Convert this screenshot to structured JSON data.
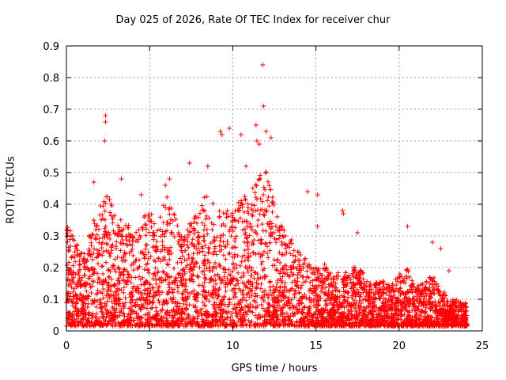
{
  "chart_data": {
    "type": "scatter",
    "title": "Day 025 of 2026, Rate Of TEC Index for receiver chur",
    "xlabel": "GPS time / hours",
    "ylabel": "ROTI / TECUs",
    "xlim": [
      0,
      25
    ],
    "ylim": [
      0,
      0.9
    ],
    "xticks": [
      "0",
      "5",
      "10",
      "15",
      "20",
      "25"
    ],
    "yticks": [
      "0",
      "0.1",
      "0.2",
      "0.3",
      "0.4",
      "0.5",
      "0.6",
      "0.7",
      "0.8",
      "0.9"
    ],
    "grid": true,
    "marker": "+",
    "color": "#ff0000",
    "outliers": [
      {
        "x": 11.8,
        "y": 0.84
      },
      {
        "x": 11.85,
        "y": 0.71
      },
      {
        "x": 2.35,
        "y": 0.68
      },
      {
        "x": 2.35,
        "y": 0.66
      },
      {
        "x": 2.3,
        "y": 0.6
      },
      {
        "x": 9.25,
        "y": 0.63
      },
      {
        "x": 9.35,
        "y": 0.62
      },
      {
        "x": 9.8,
        "y": 0.64
      },
      {
        "x": 10.5,
        "y": 0.62
      },
      {
        "x": 11.4,
        "y": 0.65
      },
      {
        "x": 12.0,
        "y": 0.63
      },
      {
        "x": 12.3,
        "y": 0.61
      },
      {
        "x": 11.6,
        "y": 0.59
      },
      {
        "x": 11.45,
        "y": 0.6
      },
      {
        "x": 7.4,
        "y": 0.53
      },
      {
        "x": 8.5,
        "y": 0.52
      },
      {
        "x": 3.3,
        "y": 0.48
      },
      {
        "x": 5.95,
        "y": 0.46
      },
      {
        "x": 6.2,
        "y": 0.48
      },
      {
        "x": 10.8,
        "y": 0.52
      },
      {
        "x": 14.5,
        "y": 0.44
      },
      {
        "x": 15.1,
        "y": 0.43
      },
      {
        "x": 16.6,
        "y": 0.38
      },
      {
        "x": 16.65,
        "y": 0.37
      },
      {
        "x": 15.1,
        "y": 0.33
      },
      {
        "x": 17.5,
        "y": 0.31
      },
      {
        "x": 20.5,
        "y": 0.33
      },
      {
        "x": 22.0,
        "y": 0.28
      },
      {
        "x": 22.5,
        "y": 0.26
      },
      {
        "x": 23.0,
        "y": 0.19
      },
      {
        "x": 4.5,
        "y": 0.43
      },
      {
        "x": 1.65,
        "y": 0.47
      }
    ],
    "envelope": [
      {
        "x": 0.0,
        "y": 0.35
      },
      {
        "x": 0.5,
        "y": 0.3
      },
      {
        "x": 1.0,
        "y": 0.24
      },
      {
        "x": 1.5,
        "y": 0.33
      },
      {
        "x": 2.0,
        "y": 0.4
      },
      {
        "x": 2.5,
        "y": 0.45
      },
      {
        "x": 3.0,
        "y": 0.36
      },
      {
        "x": 3.5,
        "y": 0.38
      },
      {
        "x": 4.0,
        "y": 0.3
      },
      {
        "x": 4.5,
        "y": 0.34
      },
      {
        "x": 5.0,
        "y": 0.4
      },
      {
        "x": 5.5,
        "y": 0.33
      },
      {
        "x": 6.0,
        "y": 0.43
      },
      {
        "x": 6.5,
        "y": 0.38
      },
      {
        "x": 7.0,
        "y": 0.3
      },
      {
        "x": 7.5,
        "y": 0.36
      },
      {
        "x": 8.0,
        "y": 0.4
      },
      {
        "x": 8.5,
        "y": 0.44
      },
      {
        "x": 9.0,
        "y": 0.38
      },
      {
        "x": 9.5,
        "y": 0.4
      },
      {
        "x": 10.0,
        "y": 0.38
      },
      {
        "x": 10.5,
        "y": 0.42
      },
      {
        "x": 11.0,
        "y": 0.44
      },
      {
        "x": 11.5,
        "y": 0.48
      },
      {
        "x": 12.0,
        "y": 0.52
      },
      {
        "x": 12.5,
        "y": 0.4
      },
      {
        "x": 13.0,
        "y": 0.33
      },
      {
        "x": 13.5,
        "y": 0.3
      },
      {
        "x": 14.0,
        "y": 0.26
      },
      {
        "x": 14.5,
        "y": 0.22
      },
      {
        "x": 15.0,
        "y": 0.2
      },
      {
        "x": 15.5,
        "y": 0.22
      },
      {
        "x": 16.0,
        "y": 0.18
      },
      {
        "x": 16.5,
        "y": 0.2
      },
      {
        "x": 17.0,
        "y": 0.18
      },
      {
        "x": 17.5,
        "y": 0.22
      },
      {
        "x": 18.0,
        "y": 0.17
      },
      {
        "x": 18.5,
        "y": 0.15
      },
      {
        "x": 19.0,
        "y": 0.16
      },
      {
        "x": 19.5,
        "y": 0.14
      },
      {
        "x": 20.0,
        "y": 0.18
      },
      {
        "x": 20.5,
        "y": 0.2
      },
      {
        "x": 21.0,
        "y": 0.14
      },
      {
        "x": 21.5,
        "y": 0.15
      },
      {
        "x": 22.0,
        "y": 0.18
      },
      {
        "x": 22.5,
        "y": 0.14
      },
      {
        "x": 23.0,
        "y": 0.1
      },
      {
        "x": 23.5,
        "y": 0.1
      },
      {
        "x": 24.0,
        "y": 0.09
      }
    ]
  }
}
